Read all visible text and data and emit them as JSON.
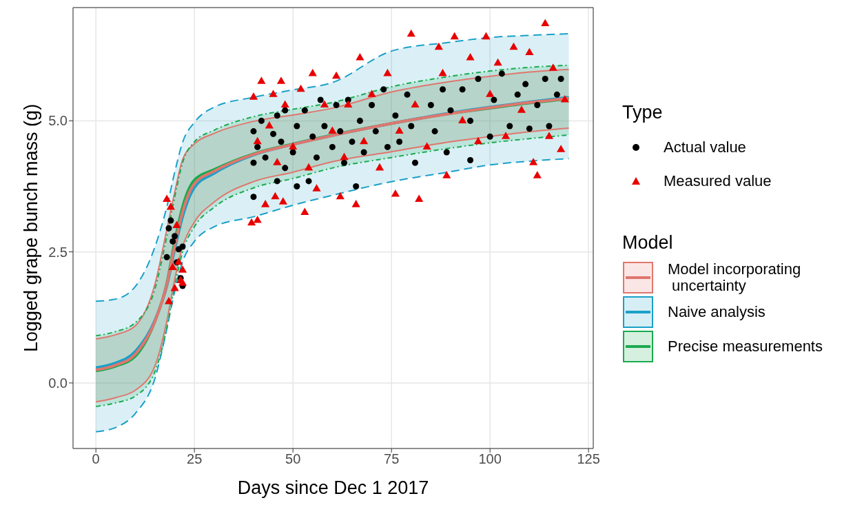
{
  "chart_data": {
    "type": "line",
    "xlabel": "Days since Dec 1 2017",
    "ylabel": "Logged grape bunch mass (g)",
    "legend_title": [
      "Type",
      "Model"
    ],
    "legend": "right",
    "grid": true,
    "xlim": [
      -5.8,
      126.2
    ],
    "xticks": [
      0,
      25,
      50,
      75,
      100,
      125
    ],
    "ylim": [
      -1.25,
      7.16
    ],
    "yticks": [
      {
        "value": 0,
        "label": "0.0"
      },
      {
        "value": 2.5,
        "label": "2.5"
      },
      {
        "value": 5,
        "label": "5.0"
      }
    ],
    "series": [
      {
        "name": "Actual value",
        "type": "scatter",
        "marker": "circle",
        "color": "#000000",
        "x": [
          18,
          18.5,
          19,
          19.5,
          20,
          20.5,
          21,
          21.5,
          22,
          22,
          40,
          40,
          40,
          41,
          42,
          43,
          45,
          46,
          46,
          47,
          48,
          48,
          50,
          51,
          51,
          53,
          54,
          55,
          56,
          57,
          58,
          60,
          61,
          62,
          63,
          64,
          65,
          66,
          67,
          68,
          70,
          71,
          73,
          74,
          76,
          77,
          79,
          80,
          81,
          85,
          86,
          88,
          89,
          90,
          93,
          95,
          95,
          97,
          100,
          101,
          103,
          105,
          107,
          109,
          110,
          112,
          114,
          115,
          117,
          118
        ],
        "values": [
          2.4,
          2.95,
          3.1,
          2.7,
          2.8,
          2.3,
          2.55,
          2.0,
          2.6,
          1.85,
          3.55,
          4.2,
          4.8,
          4.5,
          5.0,
          4.3,
          4.75,
          3.85,
          5.1,
          4.6,
          4.1,
          5.2,
          4.4,
          3.75,
          4.9,
          5.2,
          3.85,
          4.7,
          4.3,
          5.4,
          4.9,
          4.5,
          5.3,
          4.8,
          4.2,
          5.4,
          4.6,
          3.75,
          5.0,
          4.4,
          5.3,
          4.8,
          5.6,
          4.5,
          5.1,
          4.6,
          5.5,
          4.9,
          4.2,
          5.3,
          4.8,
          5.6,
          4.4,
          5.2,
          5.6,
          4.25,
          5.0,
          5.8,
          4.7,
          5.4,
          5.9,
          4.9,
          5.5,
          5.7,
          4.85,
          5.3,
          5.8,
          4.9,
          5.5,
          5.8
        ]
      },
      {
        "name": "Measured value",
        "type": "scatter",
        "marker": "triangle",
        "color": "#e80000",
        "x": [
          18,
          18.5,
          19,
          19.5,
          20,
          20.5,
          21,
          21.5,
          22,
          22,
          39.5,
          40,
          41,
          41,
          42,
          43,
          44,
          45,
          45.5,
          46,
          47,
          47.5,
          48,
          50,
          52,
          53,
          54,
          55,
          56,
          58,
          60,
          61,
          62,
          63,
          64,
          66,
          67,
          68,
          70,
          72,
          74,
          76,
          77,
          80,
          81,
          82,
          84,
          87,
          88,
          89,
          91,
          93,
          95,
          97,
          99,
          100,
          102,
          104,
          106,
          108,
          110,
          111,
          112,
          114,
          115,
          116,
          118,
          119
        ],
        "values": [
          3.5,
          1.55,
          3.35,
          2.2,
          1.8,
          3.0,
          2.3,
          1.95,
          2.15,
          1.9,
          3.05,
          5.45,
          3.1,
          4.6,
          5.75,
          3.4,
          4.9,
          5.5,
          3.55,
          4.2,
          5.75,
          3.45,
          5.3,
          4.5,
          5.6,
          3.25,
          4.1,
          5.9,
          3.7,
          5.3,
          4.8,
          5.85,
          3.55,
          4.3,
          5.3,
          3.4,
          6.2,
          4.6,
          5.5,
          4.1,
          5.9,
          3.6,
          4.8,
          6.65,
          5.3,
          3.5,
          4.5,
          6.4,
          5.9,
          3.95,
          6.6,
          5.0,
          6.2,
          4.6,
          6.6,
          5.5,
          6.1,
          4.7,
          6.4,
          5.2,
          6.3,
          4.2,
          3.95,
          6.85,
          4.7,
          6.0,
          4.45,
          5.4
        ]
      },
      {
        "name": "Model incorporating\n uncertainty",
        "line_style": "solid",
        "color": "#e0766e",
        "x": [
          0,
          5,
          10,
          15,
          18,
          20,
          22,
          25,
          30,
          40,
          50,
          60,
          75,
          90,
          100,
          110,
          120
        ],
        "values": [
          0.25,
          0.34,
          0.55,
          1.18,
          1.88,
          2.62,
          3.26,
          3.8,
          4.04,
          4.36,
          4.55,
          4.72,
          4.95,
          5.14,
          5.25,
          5.35,
          5.43
        ],
        "lower": [
          -0.36,
          -0.28,
          -0.14,
          0.33,
          1.18,
          1.98,
          2.6,
          3.07,
          3.45,
          3.84,
          4.02,
          4.22,
          4.41,
          4.6,
          4.7,
          4.79,
          4.86
        ],
        "upper": [
          0.84,
          0.92,
          1.09,
          1.89,
          2.93,
          3.64,
          4.26,
          4.56,
          4.76,
          4.99,
          5.11,
          5.24,
          5.55,
          5.75,
          5.85,
          5.93,
          5.98
        ]
      },
      {
        "name": "Naive analysis",
        "line_style": "solid",
        "color": "#1aa0c8",
        "x": [
          0,
          5,
          10,
          15,
          18,
          20,
          22,
          25,
          30,
          40,
          50,
          60,
          75,
          90,
          100,
          110,
          120
        ],
        "values": [
          0.29,
          0.38,
          0.6,
          1.2,
          1.85,
          2.55,
          3.17,
          3.73,
          4.0,
          4.35,
          4.55,
          4.72,
          4.95,
          5.15,
          5.26,
          5.36,
          5.45
        ],
        "lower": [
          -0.93,
          -0.85,
          -0.58,
          0.09,
          1.03,
          1.75,
          2.31,
          2.7,
          2.98,
          3.17,
          3.39,
          3.58,
          3.84,
          4.03,
          4.16,
          4.23,
          4.28
        ],
        "upper": [
          1.56,
          1.6,
          1.84,
          2.6,
          3.36,
          4.02,
          4.59,
          4.97,
          5.26,
          5.45,
          5.59,
          5.73,
          6.33,
          6.5,
          6.59,
          6.63,
          6.66
        ]
      },
      {
        "name": "Precise measurements",
        "line_style": "solid",
        "color": "#1aaa50",
        "x": [
          0,
          5,
          10,
          15,
          18,
          20,
          22,
          25,
          30,
          40,
          50,
          60,
          75,
          90,
          100,
          110,
          120
        ],
        "values": [
          0.23,
          0.32,
          0.51,
          1.18,
          1.9,
          2.7,
          3.36,
          3.87,
          4.07,
          4.37,
          4.56,
          4.73,
          4.95,
          5.14,
          5.24,
          5.34,
          5.42
        ],
        "lower": [
          -0.45,
          -0.38,
          -0.25,
          0.22,
          1.05,
          1.85,
          2.5,
          2.98,
          3.35,
          3.72,
          3.9,
          4.1,
          4.3,
          4.48,
          4.58,
          4.66,
          4.73
        ],
        "upper": [
          0.9,
          0.98,
          1.15,
          1.8,
          2.8,
          3.55,
          4.2,
          4.6,
          4.82,
          5.08,
          5.22,
          5.35,
          5.65,
          5.85,
          5.95,
          6.02,
          6.06
        ]
      },
      {
        "line_style": "solid",
        "color": "#e0766e",
        "x": [
          0,
          5,
          10,
          15,
          18,
          20,
          22,
          25,
          30,
          40,
          50,
          60,
          75,
          90,
          100,
          110,
          120
        ],
        "values": [
          -0.36,
          -0.28,
          -0.14,
          0.33,
          1.18,
          1.98,
          2.6,
          3.07,
          3.45,
          3.84,
          4.02,
          4.22,
          4.41,
          4.6,
          4.7,
          4.79,
          4.86
        ]
      },
      {
        "line_style": "solid",
        "color": "#e0766e",
        "x": [
          0,
          5,
          10,
          15,
          18,
          20,
          22,
          25,
          30,
          40,
          50,
          60,
          75,
          90,
          100,
          110,
          120
        ],
        "values": [
          0.84,
          0.92,
          1.09,
          1.89,
          2.93,
          3.64,
          4.26,
          4.56,
          4.76,
          4.99,
          5.11,
          5.24,
          5.55,
          5.75,
          5.85,
          5.93,
          5.98
        ]
      },
      {
        "line_style": "dashed",
        "color": "#1aa0c8",
        "x": [
          0,
          5,
          10,
          15,
          18,
          20,
          22,
          25,
          30,
          40,
          50,
          60,
          75,
          90,
          100,
          110,
          120
        ],
        "values": [
          -0.93,
          -0.85,
          -0.58,
          0.09,
          1.03,
          1.75,
          2.31,
          2.7,
          2.98,
          3.17,
          3.39,
          3.58,
          3.84,
          4.03,
          4.16,
          4.23,
          4.28
        ]
      },
      {
        "line_style": "dashed",
        "color": "#1aa0c8",
        "x": [
          0,
          5,
          10,
          15,
          18,
          20,
          22,
          25,
          30,
          40,
          50,
          60,
          75,
          90,
          100,
          110,
          120
        ],
        "values": [
          1.56,
          1.6,
          1.84,
          2.6,
          3.36,
          4.02,
          4.59,
          4.97,
          5.26,
          5.45,
          5.59,
          5.73,
          6.33,
          6.5,
          6.59,
          6.63,
          6.66
        ]
      },
      {
        "line_style": "dotted",
        "color": "#1aaa50",
        "x": [
          0,
          5,
          10,
          15,
          18,
          20,
          22,
          25,
          30,
          40,
          50,
          60,
          75,
          90,
          100,
          110,
          120
        ],
        "values": [
          -0.45,
          -0.38,
          -0.25,
          0.22,
          1.05,
          1.85,
          2.5,
          2.98,
          3.35,
          3.72,
          3.9,
          4.1,
          4.3,
          4.48,
          4.58,
          4.66,
          4.73
        ]
      },
      {
        "line_style": "dotted",
        "color": "#1aaa50",
        "x": [
          0,
          5,
          10,
          15,
          18,
          20,
          22,
          25,
          30,
          40,
          50,
          60,
          75,
          90,
          100,
          110,
          120
        ],
        "values": [
          0.9,
          0.98,
          1.15,
          1.8,
          2.8,
          3.55,
          4.2,
          4.6,
          4.82,
          5.08,
          5.22,
          5.35,
          5.65,
          5.85,
          5.95,
          6.02,
          6.06
        ]
      }
    ]
  }
}
